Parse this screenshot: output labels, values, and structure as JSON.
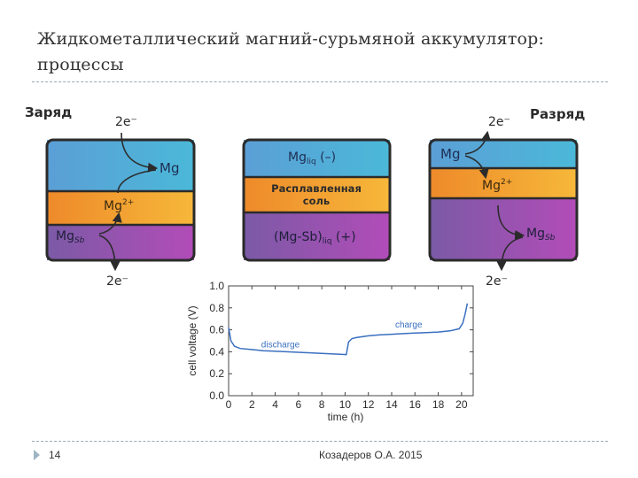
{
  "slide": {
    "title_line1": "Жидкометаллический магний-сурьмяной аккумулятор:",
    "title_line2": "процессы",
    "page_number": "14",
    "author": "Козадеров О.А. 2015"
  },
  "colors": {
    "top_layer": "#4aa6dd",
    "middle_layer": "#f2a12e",
    "bottom_layer": "#8a57b6",
    "arrow": "#2b2b2b",
    "curve": "#3a6fc0",
    "text_dark": "#2b2b2b"
  },
  "diagram": {
    "charge_heading": "Заряд",
    "discharge_heading": "Разряд",
    "electron": "2e⁻",
    "left_cell": {
      "top": "Mg",
      "middle": "Mg",
      "middle_sup": "2+",
      "bottom": "Mg",
      "bottom_sub": "Sb"
    },
    "center_cell": {
      "top": "Mg",
      "top_sub": "liq",
      "top_suffix": " (–)",
      "middle_line1": "Расплавленная",
      "middle_line2": "соль",
      "bottom_prefix": "(Mg-Sb)",
      "bottom_sub": "liq",
      "bottom_suffix": " (+)"
    },
    "right_cell": {
      "top": "Mg",
      "middle": "Mg",
      "middle_sup": "2+",
      "bottom": "Mg",
      "bottom_sub": "Sb"
    }
  },
  "chart_data": {
    "type": "line",
    "xlabel": "time (h)",
    "ylabel": "cell voltage (V)",
    "xlim": [
      0,
      21
    ],
    "ylim": [
      0.0,
      1.0
    ],
    "xticks": [
      "0",
      "2",
      "4",
      "6",
      "8",
      "10",
      "12",
      "14",
      "16",
      "18",
      "20"
    ],
    "yticks": [
      "0.0",
      "0.2",
      "0.4",
      "0.6",
      "0.8",
      "1.0"
    ],
    "annotations": [
      "discharge",
      "charge"
    ],
    "series": [
      {
        "name": "discharge",
        "x": [
          0,
          0.2,
          0.5,
          1,
          2,
          3,
          4,
          5,
          6,
          7,
          8,
          9,
          10,
          10.1
        ],
        "y": [
          0.62,
          0.5,
          0.45,
          0.43,
          0.42,
          0.41,
          0.405,
          0.4,
          0.395,
          0.39,
          0.385,
          0.38,
          0.375,
          0.37
        ]
      },
      {
        "name": "charge",
        "x": [
          10.1,
          10.3,
          10.6,
          11,
          12,
          13,
          14,
          15,
          16,
          17,
          18,
          19,
          19.8,
          20.1,
          20.3,
          20.5
        ],
        "y": [
          0.37,
          0.49,
          0.52,
          0.53,
          0.545,
          0.555,
          0.56,
          0.565,
          0.57,
          0.575,
          0.58,
          0.59,
          0.61,
          0.66,
          0.74,
          0.84
        ]
      }
    ]
  }
}
